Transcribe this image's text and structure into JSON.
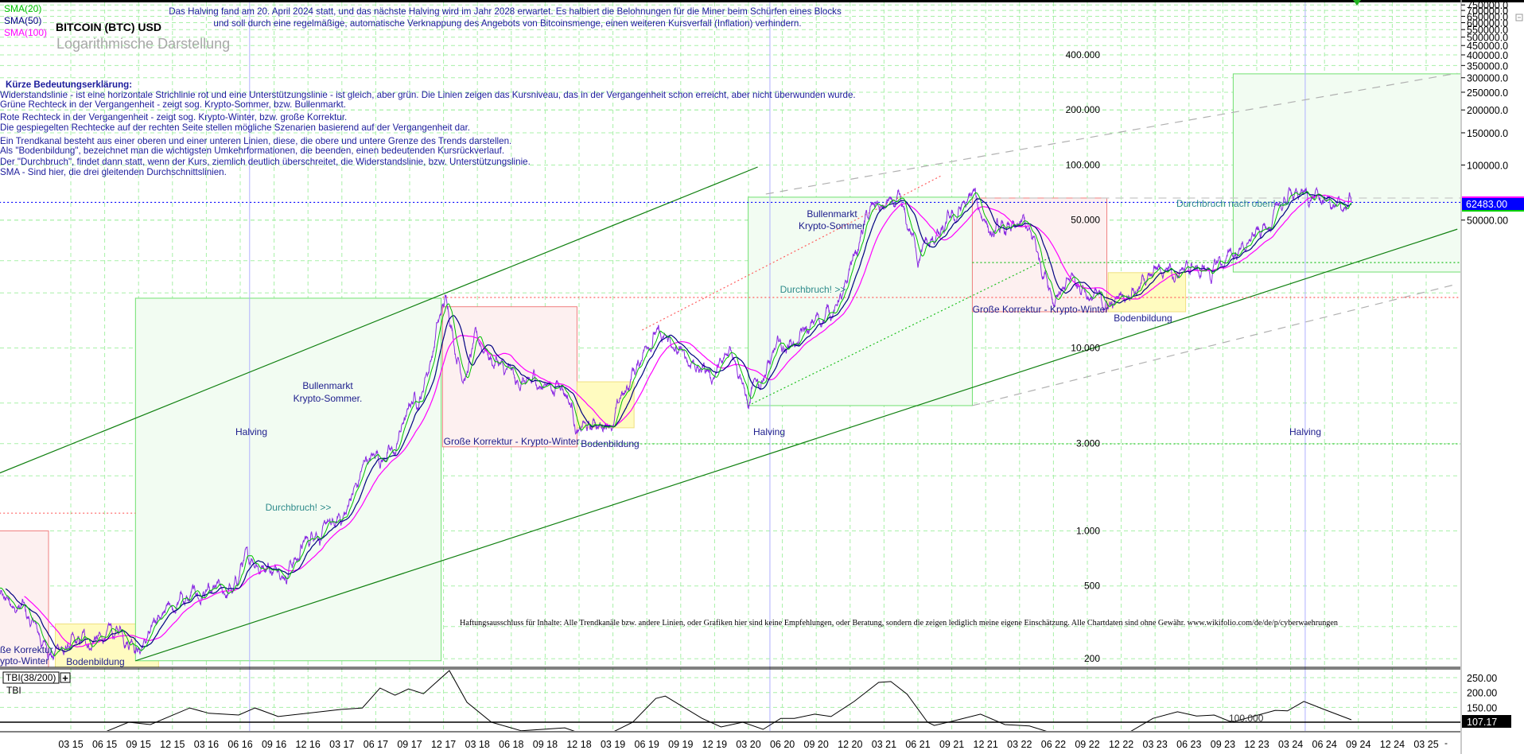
{
  "header": {
    "legend_sma20": "SMA(20)",
    "legend_sma50": "SMA(50)",
    "legend_sma100": "SMA(100)",
    "title": "BITCOIN (BTC) USD",
    "subtitle": "Logarithmische Darstellung",
    "note_line1": "Das Halving fand am 20. April 2024 statt, und das nächste Halving wird im Jahr 2028 erwartet. Es halbiert die Belohnungen für die Miner beim Schürfen eines Blocks",
    "note_line2": "und soll durch eine regelmäßige, automatische Verknappung des Angebots von Bitcoinsmenge, einen weiteren Kursverfall (Inflation) verhindern."
  },
  "legend_block": {
    "heading": "Kürze Bedeutungserklärung:",
    "lines": [
      "Widerstandslinie - ist eine horizontale Strichlinie rot und eine Unterstützungslinie - ist gleich, aber grün. Die Linien zeigen das Kursniveau, das in der Vergangenheit schon erreicht, aber nicht überwunden wurde.",
      "Grüne Rechteck in der Vergangenheit - zeigt sog. Krypto-Sommer, bzw. Bullenmarkt.",
      "Rote Rechteck in der Vergangenheit - zeigt sog. Krypto-Winter, bzw. große Korrektur.",
      "Die gespiegelten Rechtecke auf der rechten Seite stellen mögliche Szenarien basierend auf der Vergangenheit dar.",
      "Ein Trendkanal besteht aus einer oberen und einer unteren Linien, diese, die obere und untere Grenze des Trends darstellen.",
      "Als \"Bodenbildung\", bezeichnet man die wichtigsten Umkehrformationen, die beenden, einen bedeutenden Kursrückverlauf.",
      "Der \"Durchbruch\", findet dann statt, wenn der Kurs, ziemlich deutlich überschreitet, die Widerstandslinie, bzw. Unterstützungslinie.",
      "SMA - Sind hier, die drei gleitenden Durchschnittslinien."
    ]
  },
  "disclaimer": "Haftungsausschluss für Inhalte: Alle Trendkanäle bzw. andere Linien, oder Grafiken hier sind keine Empfehlungen, oder Beratung, sondern die zeigen lediglich meine eigene Einschätzung. Alle Chartdaten sind ohne Gewähr.  www.wikifolio.com/de/de/p/cyberwaehrungen",
  "colors": {
    "price": "#8a2be2",
    "sma20": "#00c000",
    "sma50": "#000080",
    "sma100": "#ff00ff",
    "bull": "#f2fcf2",
    "bear": "#fdf0f0",
    "bottom": "#fffbc0",
    "current_bg": "#0000ff"
  },
  "chart_data": {
    "type": "line",
    "title": "BITCOIN (BTC) USD",
    "yscale": "log",
    "ylim": [
      150,
      800000
    ],
    "xlim": [
      2014.6,
      2025.5
    ],
    "current_price": "62483.00",
    "price_anchors": [
      [
        2014.6,
        500
      ],
      [
        2014.75,
        420
      ],
      [
        2014.85,
        380
      ],
      [
        2015.05,
        220
      ],
      [
        2015.3,
        240
      ],
      [
        2015.6,
        280
      ],
      [
        2015.75,
        235
      ],
      [
        2015.85,
        330
      ],
      [
        2016.0,
        430
      ],
      [
        2016.4,
        450
      ],
      [
        2016.5,
        700
      ],
      [
        2016.8,
        620
      ],
      [
        2017.0,
        980
      ],
      [
        2017.2,
        1100
      ],
      [
        2017.4,
        2500
      ],
      [
        2017.6,
        2700
      ],
      [
        2017.7,
        4700
      ],
      [
        2017.8,
        5800
      ],
      [
        2017.97,
        19000
      ],
      [
        2018.1,
        7000
      ],
      [
        2018.2,
        11000
      ],
      [
        2018.5,
        6300
      ],
      [
        2018.85,
        6400
      ],
      [
        2018.95,
        3500
      ],
      [
        2019.2,
        4000
      ],
      [
        2019.5,
        12500
      ],
      [
        2019.7,
        9000
      ],
      [
        2019.95,
        7200
      ],
      [
        2020.1,
        10000
      ],
      [
        2020.2,
        5000
      ],
      [
        2020.4,
        9500
      ],
      [
        2020.6,
        11500
      ],
      [
        2020.9,
        19000
      ],
      [
        2021.0,
        35000
      ],
      [
        2021.1,
        57000
      ],
      [
        2021.3,
        60000
      ],
      [
        2021.45,
        33000
      ],
      [
        2021.6,
        40000
      ],
      [
        2021.85,
        67000
      ],
      [
        2022.0,
        42000
      ],
      [
        2022.25,
        45000
      ],
      [
        2022.45,
        20000
      ],
      [
        2022.6,
        23000
      ],
      [
        2022.85,
        16500
      ],
      [
        2023.0,
        21000
      ],
      [
        2023.3,
        28000
      ],
      [
        2023.6,
        26000
      ],
      [
        2023.8,
        34000
      ],
      [
        2024.0,
        44000
      ],
      [
        2024.2,
        71000
      ],
      [
        2024.45,
        64000
      ],
      [
        2024.55,
        56000
      ],
      [
        2024.64,
        62483
      ]
    ],
    "sma_periods": [
      20,
      50,
      100
    ],
    "price_labels": [
      {
        "label": "400.000",
        "value": 400000
      },
      {
        "label": "200.000",
        "value": 200000
      },
      {
        "label": "100.000",
        "value": 100000
      },
      {
        "label": "50.000",
        "value": 50000
      },
      {
        "label": "10.000",
        "value": 10000
      },
      {
        "label": "3.000",
        "value": 3000
      },
      {
        "label": "1.000",
        "value": 1000
      },
      {
        "label": "500",
        "value": 500
      },
      {
        "label": "200",
        "value": 200
      }
    ],
    "right_axis": [
      {
        "label": "750000.0",
        "value": 750000
      },
      {
        "label": "700000.0",
        "value": 700000
      },
      {
        "label": "650000.0",
        "value": 650000
      },
      {
        "label": "600000.0",
        "value": 600000
      },
      {
        "label": "550000.0",
        "value": 550000
      },
      {
        "label": "500000.0",
        "value": 500000
      },
      {
        "label": "450000.0",
        "value": 450000
      },
      {
        "label": "400000.0",
        "value": 400000
      },
      {
        "label": "350000.0",
        "value": 350000
      },
      {
        "label": "300000.0",
        "value": 300000
      },
      {
        "label": "250000.0",
        "value": 250000
      },
      {
        "label": "200000.0",
        "value": 200000
      },
      {
        "label": "150000.0",
        "value": 150000
      },
      {
        "label": "100000.0",
        "value": 100000
      },
      {
        "label": "50000.00",
        "value": 50000
      }
    ],
    "zones": [
      {
        "kind": "bear",
        "from": 2014.55,
        "to": 2015.05,
        "top": 1000,
        "bottom": 100
      },
      {
        "kind": "bottom",
        "from": 2015.1,
        "to": 2015.86,
        "top": 310,
        "bottom": 100
      },
      {
        "kind": "bull",
        "from": 2015.69,
        "to": 2017.94,
        "top": 18700,
        "bottom": 195
      },
      {
        "kind": "bear",
        "from": 2017.95,
        "to": 2018.94,
        "top": 16800,
        "bottom": 2880
      },
      {
        "kind": "bottom",
        "from": 2018.94,
        "to": 2019.36,
        "top": 6530,
        "bottom": 3660
      },
      {
        "kind": "bull",
        "from": 2020.2,
        "to": 2021.85,
        "top": 66700,
        "bottom": 4840
      },
      {
        "kind": "bear",
        "from": 2021.85,
        "to": 2022.84,
        "top": 66000,
        "bottom": 15770
      },
      {
        "kind": "bottom",
        "from": 2022.85,
        "to": 2023.42,
        "top": 25800,
        "bottom": 15770
      },
      {
        "kind": "bull",
        "from": 2023.77,
        "to": 2025.46,
        "top": 315000,
        "bottom": 26000
      }
    ],
    "lines": [
      {
        "name": "upper-trendline",
        "style": "solid",
        "color": "#108010",
        "from": [
          2014.6,
          1946
        ],
        "to": [
          2020.27,
          97500
        ]
      },
      {
        "name": "lower-trendline",
        "style": "solid",
        "color": "#108010",
        "from": [
          2015.69,
          195
        ],
        "to": [
          2025.42,
          44600
        ]
      },
      {
        "name": "red-dotted-diagonal",
        "style": "dot",
        "color": "#ff6060",
        "from": [
          2019.42,
          12530
        ],
        "to": [
          2021.63,
          88100
        ]
      },
      {
        "name": "green-dotted-diagonal",
        "style": "dot",
        "color": "#20c020",
        "from": [
          2020.2,
          4840
        ],
        "to": [
          2022.42,
          31150
        ]
      },
      {
        "name": "grey-channel-upper",
        "style": "dash",
        "color": "#b0b0b0",
        "from": [
          2020.33,
          69400
        ],
        "to": [
          2025.42,
          317700
        ]
      },
      {
        "name": "grey-channel-lower",
        "style": "dash",
        "color": "#b0b0b0",
        "from": [
          2021.85,
          4840
        ],
        "to": [
          2025.42,
          22380
        ]
      },
      {
        "name": "current-price-line",
        "style": "dot",
        "color": "#0000ff",
        "from": [
          2014.6,
          62483
        ],
        "to": [
          2025.5,
          62483
        ]
      },
      {
        "name": "resistance-2013",
        "style": "dot",
        "color": "#ff6060",
        "from": [
          2014.6,
          1250
        ],
        "to": [
          2015.69,
          1250
        ]
      },
      {
        "name": "resistance-2017",
        "style": "dot",
        "color": "#ff6060",
        "from": [
          2017.95,
          18880
        ],
        "to": [
          2025.46,
          18880
        ]
      },
      {
        "name": "support-2018",
        "style": "dot",
        "color": "#20c020",
        "from": [
          2018.94,
          2990
        ],
        "to": [
          2025.46,
          2990
        ]
      },
      {
        "name": "support-2021",
        "style": "dot",
        "color": "#20c020",
        "from": [
          2021.85,
          29300
        ],
        "to": [
          2025.46,
          29300
        ]
      },
      {
        "name": "ath-2021",
        "style": "dash",
        "color": "#c8c8c8",
        "from": [
          2021.85,
          66000
        ],
        "to": [
          2025.46,
          66000
        ]
      }
    ],
    "halvings": [
      2016.53,
      2020.36,
      2024.3
    ],
    "annotations": [
      "Bullenmarkt",
      "Krypto-Sommer.",
      "Halving",
      "Durchbruch! >>",
      "Große Korrektur - Krypto-Winter",
      "Bodenbildung",
      "Halving",
      "Bullenmarkt",
      "Krypto-Sommer",
      "Durchbruch! >>",
      "Große Korrektur - Krypto-Winter",
      "Bodenbildung",
      "Durchbruch nach oben! >>",
      "Halving",
      "ße Korrektur",
      "ypto-Winter",
      "Bodenbildung"
    ],
    "x_ticks": [
      "03 15",
      "06 15",
      "09 15",
      "12 15",
      "03 16",
      "06 16",
      "09 16",
      "12 16",
      "03 17",
      "06 17",
      "09 17",
      "12 17",
      "03 18",
      "06 18",
      "09 18",
      "12 18",
      "03 19",
      "06 19",
      "09 19",
      "12 19",
      "03 20",
      "06 20",
      "09 20",
      "12 20",
      "03 21",
      "06 21",
      "09 21",
      "12 21",
      "03 22",
      "06 22",
      "09 22",
      "12 22",
      "03 23",
      "06 23",
      "09 23",
      "12 23",
      "03 24",
      "06 24",
      "09 24",
      "12 24",
      "03 25"
    ],
    "indicator": {
      "name": "TBI(38/200)",
      "short": "TBI",
      "expand": "+",
      "reference_label": "100.000",
      "reference": 100,
      "current": "107.17",
      "axis": [
        {
          "label": "250.00",
          "value": 250
        },
        {
          "label": "200.00",
          "value": 200
        },
        {
          "label": "150.00",
          "value": 150
        }
      ],
      "values": [
        [
          2015.48,
          70
        ],
        [
          2015.64,
          100
        ],
        [
          2015.8,
          92
        ],
        [
          2016.09,
          148
        ],
        [
          2016.23,
          130
        ],
        [
          2016.45,
          124
        ],
        [
          2016.57,
          148
        ],
        [
          2016.74,
          119
        ],
        [
          2017.2,
          143
        ],
        [
          2017.36,
          148
        ],
        [
          2017.49,
          215
        ],
        [
          2017.6,
          191
        ],
        [
          2017.7,
          212
        ],
        [
          2017.81,
          196
        ],
        [
          2018.0,
          274
        ],
        [
          2018.13,
          167
        ],
        [
          2018.31,
          100
        ],
        [
          2018.53,
          71
        ],
        [
          2018.85,
          81
        ],
        [
          2019.03,
          52
        ],
        [
          2019.21,
          68
        ],
        [
          2019.35,
          100
        ],
        [
          2019.52,
          180
        ],
        [
          2019.59,
          188
        ],
        [
          2019.86,
          113
        ],
        [
          2020.0,
          84
        ],
        [
          2020.16,
          100
        ],
        [
          2020.31,
          76
        ],
        [
          2020.44,
          113
        ],
        [
          2020.54,
          113
        ],
        [
          2020.69,
          127
        ],
        [
          2020.81,
          119
        ],
        [
          2020.98,
          170
        ],
        [
          2021.16,
          234
        ],
        [
          2021.25,
          237
        ],
        [
          2021.37,
          194
        ],
        [
          2021.52,
          100
        ],
        [
          2021.57,
          89
        ],
        [
          2021.7,
          103
        ],
        [
          2021.91,
          127
        ],
        [
          2022.09,
          92
        ],
        [
          2022.27,
          87
        ],
        [
          2022.56,
          46
        ],
        [
          2022.71,
          60
        ],
        [
          2023.0,
          65
        ],
        [
          2023.18,
          113
        ],
        [
          2023.36,
          135
        ],
        [
          2023.5,
          121
        ],
        [
          2023.63,
          124
        ],
        [
          2023.76,
          100
        ],
        [
          2024.08,
          140
        ],
        [
          2024.17,
          138
        ],
        [
          2024.29,
          170
        ],
        [
          2024.44,
          143
        ],
        [
          2024.64,
          108
        ]
      ]
    }
  }
}
